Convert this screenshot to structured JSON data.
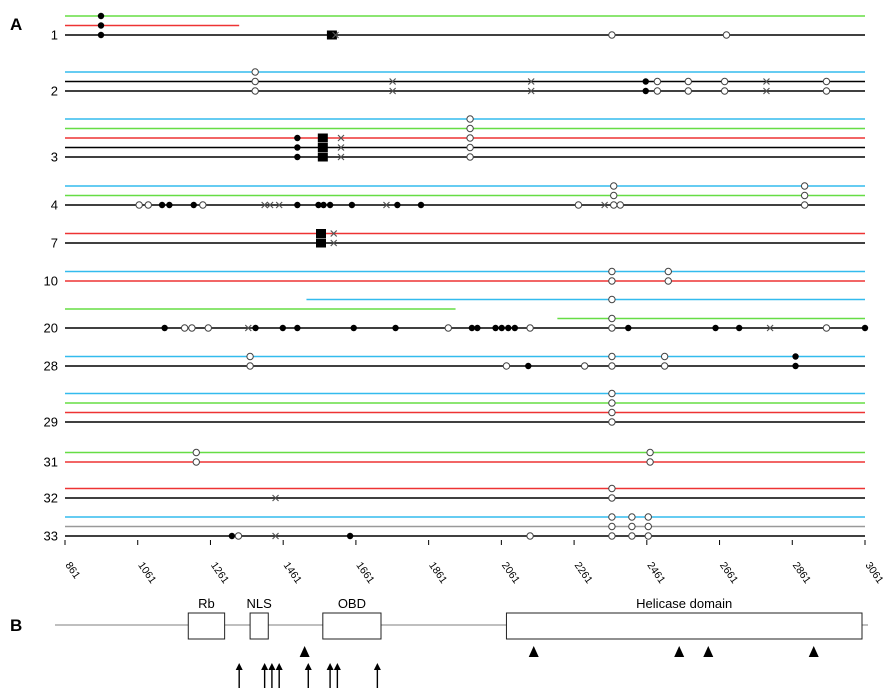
{
  "panel_labels": {
    "a": "A",
    "b": "B"
  },
  "colors": {
    "black": "#000000",
    "green": "#66dd44",
    "red": "#ee3333",
    "cyan": "#33bbee",
    "grey": "#999999"
  },
  "axis": {
    "min": 861,
    "max": 3061,
    "ticks": [
      {
        "v": 861,
        "label": "861"
      },
      {
        "v": 1061,
        "label": "1061"
      },
      {
        "v": 1261,
        "label": "1261"
      },
      {
        "v": 1461,
        "label": "1461"
      },
      {
        "v": 1661,
        "label": "1661"
      },
      {
        "v": 1861,
        "label": "1861"
      },
      {
        "v": 2061,
        "label": "2061"
      },
      {
        "v": 2261,
        "label": "2261"
      },
      {
        "v": 2461,
        "label": "2461"
      },
      {
        "v": 2661,
        "label": "2661"
      },
      {
        "v": 2861,
        "label": "2861"
      },
      {
        "v": 3061,
        "label": "3061"
      }
    ]
  },
  "groups": [
    {
      "label": "1",
      "lines": [
        {
          "c": "green",
          "s": 861,
          "e": 3061
        },
        {
          "c": "red",
          "s": 861,
          "e": 1340
        },
        {
          "c": "black",
          "s": 861,
          "e": 3061
        }
      ],
      "marks": [
        {
          "x": 960,
          "t": "filled",
          "lines": [
            0,
            1,
            2
          ]
        },
        {
          "x": 1595,
          "t": "box",
          "lines": [
            2
          ]
        },
        {
          "x": 1605,
          "t": "cross",
          "lines": [
            2
          ]
        },
        {
          "x": 2365,
          "t": "open",
          "lines": [
            2
          ]
        },
        {
          "x": 2680,
          "t": "open",
          "lines": [
            2
          ]
        }
      ]
    },
    {
      "label": "2",
      "lines": [
        {
          "c": "cyan",
          "s": 861,
          "e": 3061
        },
        {
          "c": "black",
          "s": 861,
          "e": 3061
        },
        {
          "c": "black",
          "s": 861,
          "e": 3061
        }
      ],
      "marks": [
        {
          "x": 1384,
          "t": "open",
          "lines": [
            0,
            1,
            2
          ]
        },
        {
          "x": 1762,
          "t": "cross",
          "lines": [
            1,
            2
          ]
        },
        {
          "x": 2143,
          "t": "cross",
          "lines": [
            1,
            2
          ]
        },
        {
          "x": 2458,
          "t": "filled",
          "lines": [
            1,
            2
          ]
        },
        {
          "x": 2490,
          "t": "open",
          "lines": [
            1,
            2
          ]
        },
        {
          "x": 2575,
          "t": "open",
          "lines": [
            1,
            2
          ]
        },
        {
          "x": 2675,
          "t": "open",
          "lines": [
            1,
            2
          ]
        },
        {
          "x": 2790,
          "t": "cross",
          "lines": [
            1,
            2
          ]
        },
        {
          "x": 2955,
          "t": "open",
          "lines": [
            1,
            2
          ]
        }
      ]
    },
    {
      "label": "3",
      "lines": [
        {
          "c": "cyan",
          "s": 861,
          "e": 3061
        },
        {
          "c": "green",
          "s": 861,
          "e": 3061
        },
        {
          "c": "red",
          "s": 861,
          "e": 3061
        },
        {
          "c": "black",
          "s": 861,
          "e": 3061
        },
        {
          "c": "black",
          "s": 861,
          "e": 3061
        }
      ],
      "marks": [
        {
          "x": 1975,
          "t": "open",
          "lines": [
            0,
            1,
            2,
            3,
            4
          ]
        },
        {
          "x": 1500,
          "t": "filled",
          "lines": [
            2,
            3,
            4
          ]
        },
        {
          "x": 1570,
          "t": "box",
          "lines": [
            2,
            3,
            4
          ]
        },
        {
          "x": 1620,
          "t": "cross",
          "lines": [
            2,
            3,
            4
          ]
        }
      ]
    },
    {
      "label": "4",
      "lines": [
        {
          "c": "cyan",
          "s": 861,
          "e": 3061
        },
        {
          "c": "green",
          "s": 861,
          "e": 3061
        },
        {
          "c": "black",
          "s": 861,
          "e": 3061
        }
      ],
      "marks": [
        {
          "x": 2370,
          "t": "open",
          "lines": [
            0,
            1,
            2
          ]
        },
        {
          "x": 2895,
          "t": "open",
          "lines": [
            0,
            1,
            2
          ]
        },
        {
          "x": 1065,
          "t": "open",
          "lines": [
            2
          ]
        },
        {
          "x": 1090,
          "t": "open",
          "lines": [
            2
          ]
        },
        {
          "x": 1128,
          "t": "filled",
          "lines": [
            2
          ]
        },
        {
          "x": 1148,
          "t": "filled",
          "lines": [
            2
          ]
        },
        {
          "x": 1215,
          "t": "filled",
          "lines": [
            2
          ]
        },
        {
          "x": 1240,
          "t": "open",
          "lines": [
            2
          ]
        },
        {
          "x": 1410,
          "t": "cross",
          "lines": [
            2
          ]
        },
        {
          "x": 1425,
          "t": "cross",
          "lines": [
            2
          ]
        },
        {
          "x": 1450,
          "t": "cross",
          "lines": [
            2
          ]
        },
        {
          "x": 1500,
          "t": "filled",
          "lines": [
            2
          ]
        },
        {
          "x": 1558,
          "t": "filled",
          "lines": [
            2
          ]
        },
        {
          "x": 1572,
          "t": "filled",
          "lines": [
            2
          ]
        },
        {
          "x": 1590,
          "t": "filled",
          "lines": [
            2
          ]
        },
        {
          "x": 1650,
          "t": "filled",
          "lines": [
            2
          ]
        },
        {
          "x": 1745,
          "t": "cross",
          "lines": [
            2
          ]
        },
        {
          "x": 1775,
          "t": "filled",
          "lines": [
            2
          ]
        },
        {
          "x": 1840,
          "t": "filled",
          "lines": [
            2
          ]
        },
        {
          "x": 2273,
          "t": "open",
          "lines": [
            2
          ]
        },
        {
          "x": 2345,
          "t": "cross",
          "lines": [
            2
          ]
        },
        {
          "x": 2388,
          "t": "open",
          "lines": [
            2
          ]
        }
      ]
    },
    {
      "label": "7",
      "lines": [
        {
          "c": "red",
          "s": 861,
          "e": 3061
        },
        {
          "c": "black",
          "s": 861,
          "e": 3061
        }
      ],
      "marks": [
        {
          "x": 1565,
          "t": "box",
          "lines": [
            0,
            1
          ]
        },
        {
          "x": 1600,
          "t": "cross",
          "lines": [
            0,
            1
          ]
        }
      ]
    },
    {
      "label": "10",
      "lines": [
        {
          "c": "cyan",
          "s": 861,
          "e": 3061
        },
        {
          "c": "red",
          "s": 861,
          "e": 3061
        }
      ],
      "marks": [
        {
          "x": 2365,
          "t": "open",
          "lines": [
            0,
            1
          ]
        },
        {
          "x": 2520,
          "t": "open",
          "lines": [
            0,
            1
          ]
        }
      ]
    },
    {
      "label": "20",
      "lines": [
        {
          "c": "cyan",
          "s": 1525,
          "e": 3061
        },
        {
          "c": "green",
          "s": 861,
          "e": 1935
        },
        {
          "c": "green",
          "s": 2215,
          "e": 3061
        },
        {
          "c": "black",
          "s": 861,
          "e": 3061
        }
      ],
      "marks": [
        {
          "x": 2365,
          "t": "open",
          "lines": [
            0,
            2,
            3
          ]
        },
        {
          "x": 1135,
          "t": "filled",
          "lines": [
            3
          ]
        },
        {
          "x": 1190,
          "t": "open",
          "lines": [
            3
          ]
        },
        {
          "x": 1210,
          "t": "open",
          "lines": [
            3
          ]
        },
        {
          "x": 1255,
          "t": "open",
          "lines": [
            3
          ]
        },
        {
          "x": 1365,
          "t": "cross",
          "lines": [
            3
          ]
        },
        {
          "x": 1385,
          "t": "filled",
          "lines": [
            3
          ]
        },
        {
          "x": 1460,
          "t": "filled",
          "lines": [
            3
          ]
        },
        {
          "x": 1500,
          "t": "filled",
          "lines": [
            3
          ]
        },
        {
          "x": 1655,
          "t": "filled",
          "lines": [
            3
          ]
        },
        {
          "x": 1770,
          "t": "filled",
          "lines": [
            3
          ]
        },
        {
          "x": 1915,
          "t": "open",
          "lines": [
            3
          ]
        },
        {
          "x": 1980,
          "t": "filled",
          "lines": [
            3
          ]
        },
        {
          "x": 1995,
          "t": "filled",
          "lines": [
            3
          ]
        },
        {
          "x": 2045,
          "t": "filled",
          "lines": [
            3
          ]
        },
        {
          "x": 2062,
          "t": "filled",
          "lines": [
            3
          ]
        },
        {
          "x": 2080,
          "t": "filled",
          "lines": [
            3
          ]
        },
        {
          "x": 2098,
          "t": "filled",
          "lines": [
            3
          ]
        },
        {
          "x": 2140,
          "t": "open",
          "lines": [
            3
          ]
        },
        {
          "x": 2410,
          "t": "filled",
          "lines": [
            3
          ]
        },
        {
          "x": 2650,
          "t": "filled",
          "lines": [
            3
          ]
        },
        {
          "x": 2715,
          "t": "filled",
          "lines": [
            3
          ]
        },
        {
          "x": 2800,
          "t": "cross",
          "lines": [
            3
          ]
        },
        {
          "x": 2955,
          "t": "open",
          "lines": [
            3
          ]
        },
        {
          "x": 3061,
          "t": "filled",
          "lines": [
            3
          ]
        }
      ]
    },
    {
      "label": "28",
      "lines": [
        {
          "c": "cyan",
          "s": 861,
          "e": 3061
        },
        {
          "c": "black",
          "s": 861,
          "e": 3061
        }
      ],
      "marks": [
        {
          "x": 1370,
          "t": "open",
          "lines": [
            0,
            1
          ]
        },
        {
          "x": 2365,
          "t": "open",
          "lines": [
            0,
            1
          ]
        },
        {
          "x": 2510,
          "t": "open",
          "lines": [
            0,
            1
          ]
        },
        {
          "x": 2870,
          "t": "filled",
          "lines": [
            0,
            1
          ]
        },
        {
          "x": 2075,
          "t": "open",
          "lines": [
            1
          ]
        },
        {
          "x": 2135,
          "t": "filled",
          "lines": [
            1
          ]
        },
        {
          "x": 2290,
          "t": "open",
          "lines": [
            1
          ]
        }
      ]
    },
    {
      "label": "29",
      "lines": [
        {
          "c": "cyan",
          "s": 861,
          "e": 3061
        },
        {
          "c": "green",
          "s": 861,
          "e": 3061
        },
        {
          "c": "red",
          "s": 861,
          "e": 3061
        },
        {
          "c": "black",
          "s": 861,
          "e": 3061
        }
      ],
      "marks": [
        {
          "x": 2365,
          "t": "open",
          "lines": [
            0,
            1,
            2,
            3
          ]
        }
      ]
    },
    {
      "label": "31",
      "lines": [
        {
          "c": "green",
          "s": 861,
          "e": 3061
        },
        {
          "c": "red",
          "s": 861,
          "e": 3061
        }
      ],
      "marks": [
        {
          "x": 1222,
          "t": "open",
          "lines": [
            0,
            1
          ]
        },
        {
          "x": 2470,
          "t": "open",
          "lines": [
            0,
            1
          ]
        }
      ]
    },
    {
      "label": "32",
      "lines": [
        {
          "c": "red",
          "s": 861,
          "e": 3061
        },
        {
          "c": "black",
          "s": 861,
          "e": 3061
        }
      ],
      "marks": [
        {
          "x": 2365,
          "t": "open",
          "lines": [
            0,
            1
          ]
        },
        {
          "x": 1440,
          "t": "cross",
          "lines": [
            1
          ]
        }
      ]
    },
    {
      "label": "33",
      "lines": [
        {
          "c": "cyan",
          "s": 861,
          "e": 3061
        },
        {
          "c": "grey",
          "s": 861,
          "e": 3061
        },
        {
          "c": "black",
          "s": 861,
          "e": 3061
        }
      ],
      "marks": [
        {
          "x": 2365,
          "t": "open",
          "lines": [
            0,
            1,
            2
          ]
        },
        {
          "x": 2420,
          "t": "open",
          "lines": [
            0,
            1,
            2
          ]
        },
        {
          "x": 2465,
          "t": "open",
          "lines": [
            0,
            1,
            2
          ]
        },
        {
          "x": 1320,
          "t": "filled",
          "lines": [
            2
          ]
        },
        {
          "x": 1338,
          "t": "open",
          "lines": [
            2
          ]
        },
        {
          "x": 1440,
          "t": "cross",
          "lines": [
            2
          ]
        },
        {
          "x": 1645,
          "t": "filled",
          "lines": [
            2
          ]
        },
        {
          "x": 2140,
          "t": "open",
          "lines": [
            2
          ]
        }
      ]
    }
  ],
  "panel_b": {
    "domains": [
      {
        "label": "Rb",
        "s": 1200,
        "e": 1300
      },
      {
        "label": "NLS",
        "s": 1370,
        "e": 1420
      },
      {
        "label": "OBD",
        "s": 1570,
        "e": 1730
      },
      {
        "label": "Helicase domain",
        "s": 2075,
        "e": 3061
      }
    ],
    "triangles": [
      1520,
      2150,
      2550,
      2630,
      2920
    ],
    "arrows": [
      1340,
      1410,
      1430,
      1450,
      1530,
      1590,
      1610,
      1720
    ]
  }
}
